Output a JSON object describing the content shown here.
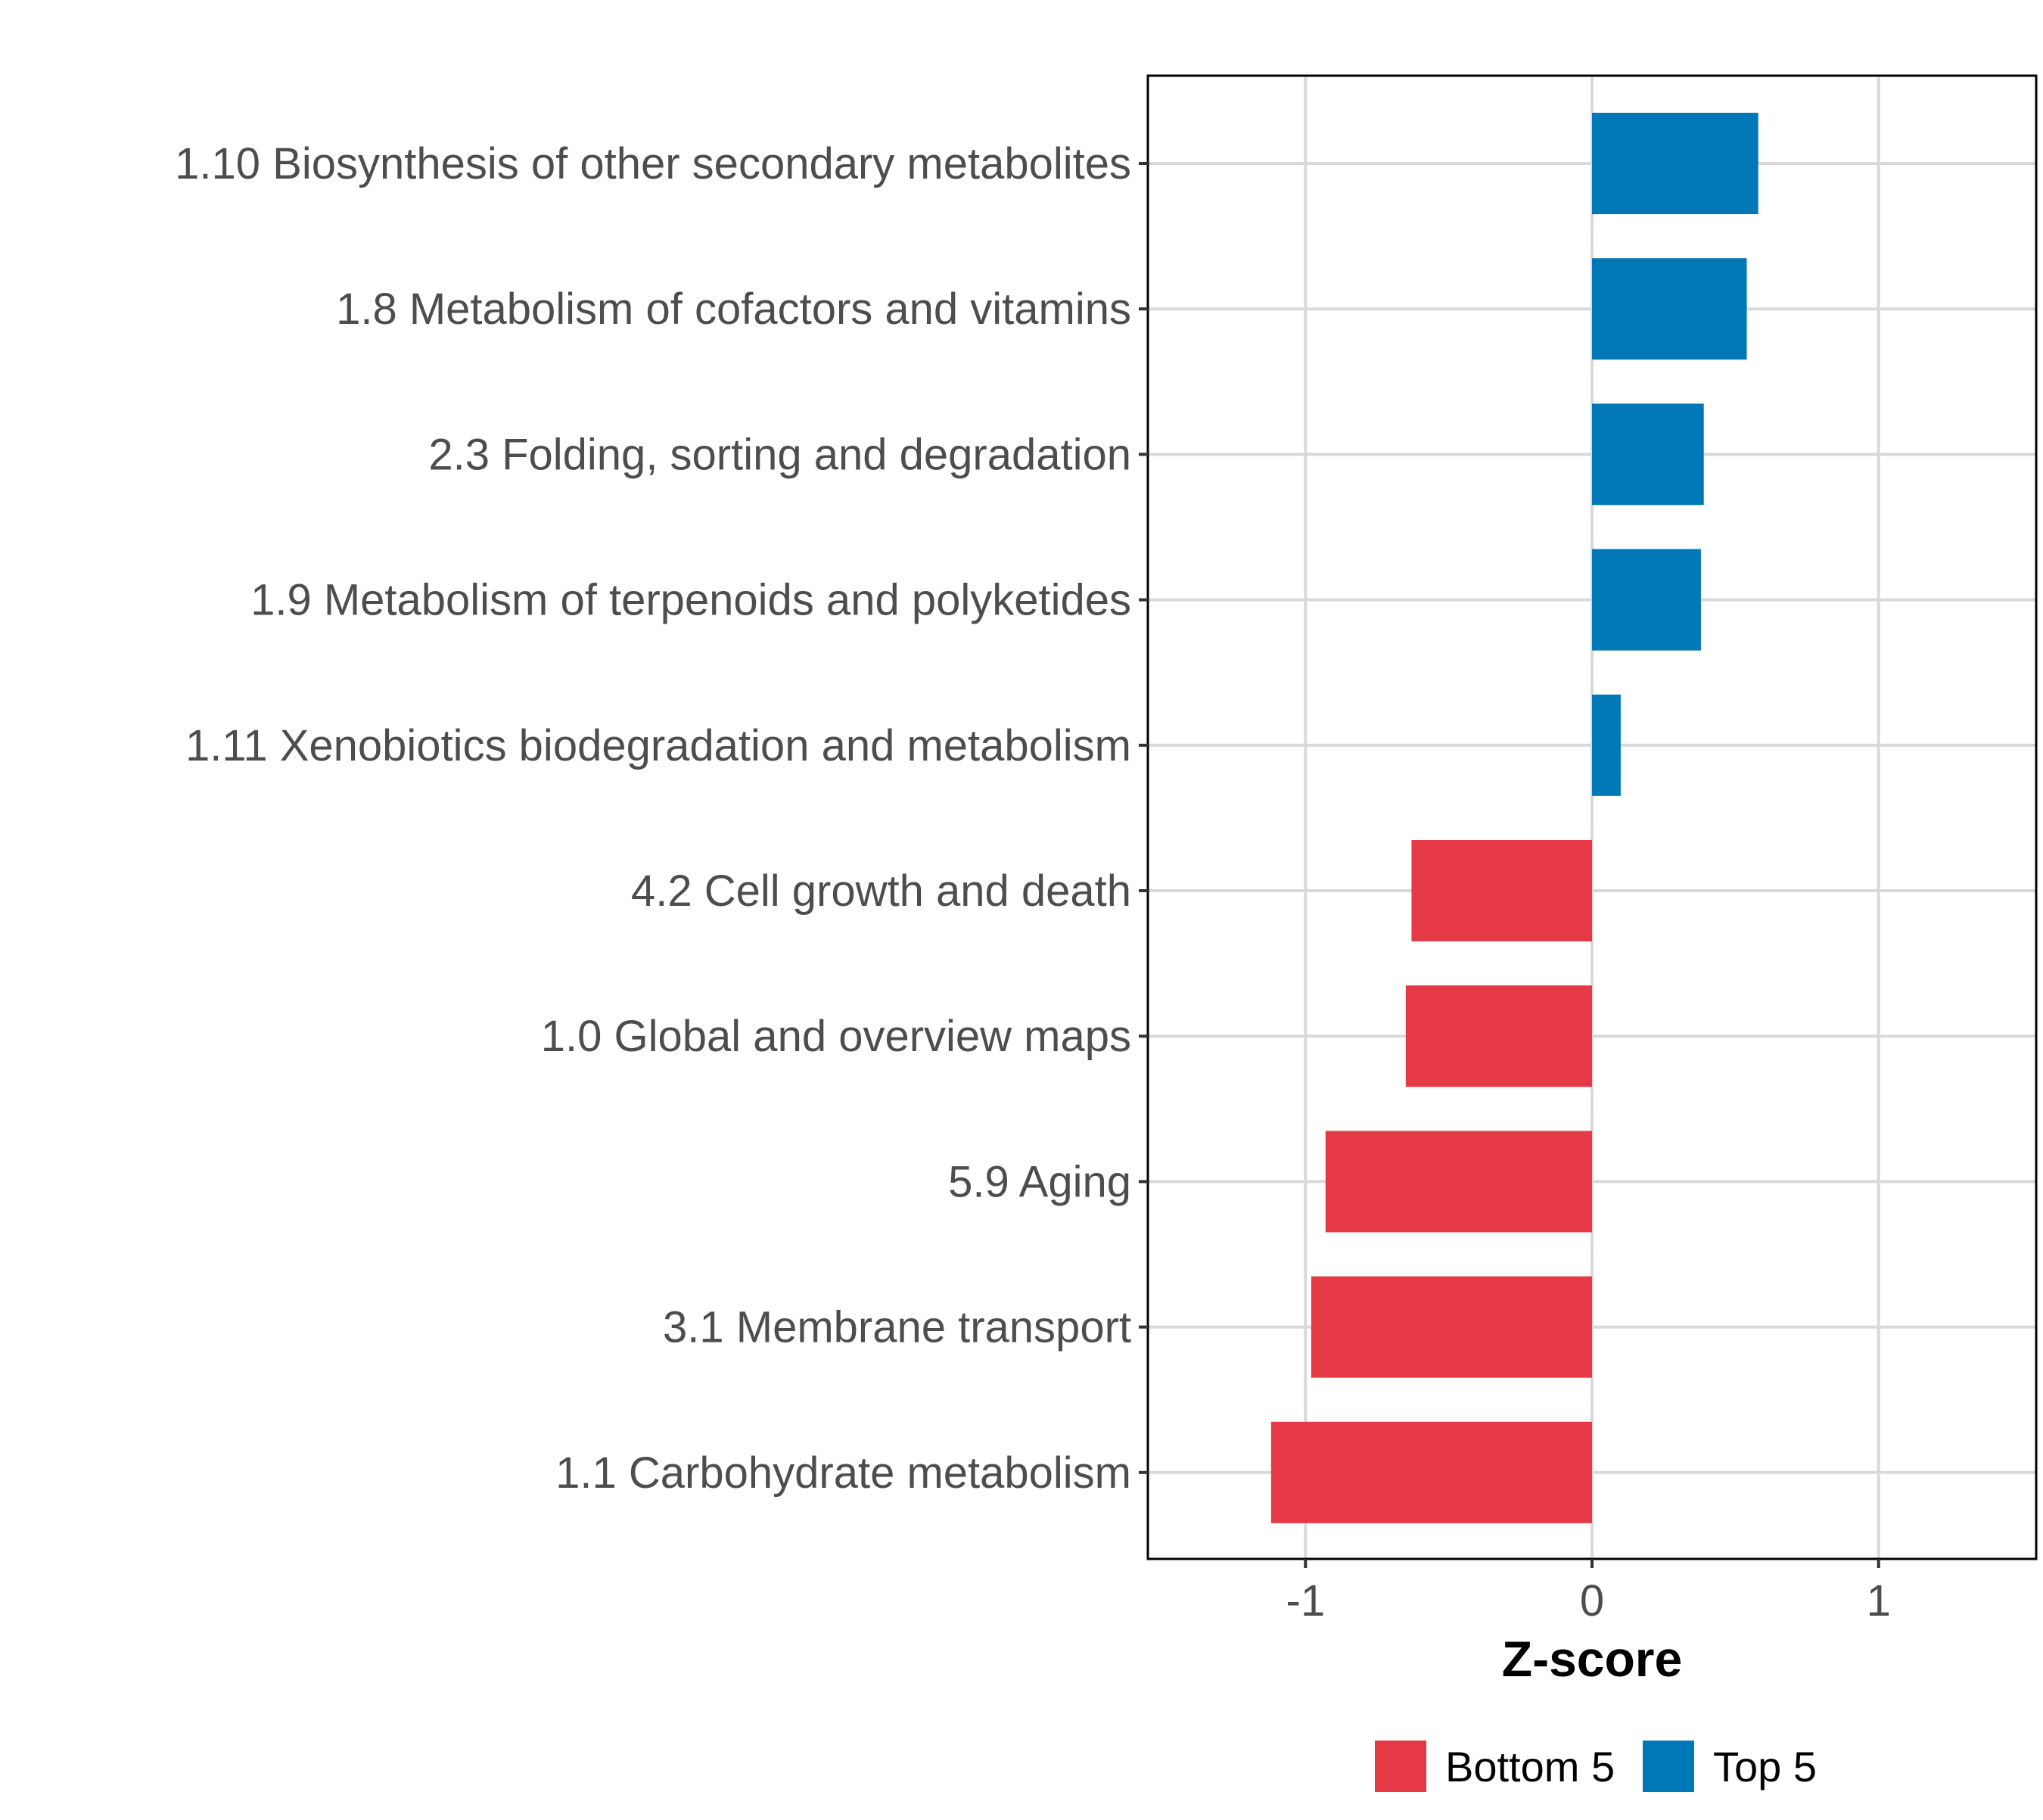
{
  "chart_data": {
    "type": "bar",
    "orientation": "horizontal",
    "title": "",
    "xlabel": "Z-score",
    "ylabel": "",
    "xlim": [
      -1.55,
      1.55
    ],
    "xticks": [
      -1,
      0,
      1
    ],
    "xtick_labels": [
      "-1",
      "0",
      "1"
    ],
    "grid": true,
    "categories": [
      "1.10 Biosynthesis of other secondary metabolites",
      "1.8 Metabolism of cofactors and vitamins",
      "2.3 Folding, sorting and degradation",
      "1.9 Metabolism of terpenoids and polyketides",
      "1.11 Xenobiotics biodegradation and metabolism",
      "4.2 Cell growth and death",
      "1.0 Global and overview maps",
      "5.9 Aging",
      "3.1 Membrane transport",
      "1.1 Carbohydrate metabolism"
    ],
    "values": [
      0.58,
      0.54,
      0.39,
      0.38,
      0.1,
      -0.63,
      -0.65,
      -0.93,
      -0.98,
      -1.12
    ],
    "groups": [
      "Top 5",
      "Top 5",
      "Top 5",
      "Top 5",
      "Top 5",
      "Bottom 5",
      "Bottom 5",
      "Bottom 5",
      "Bottom 5",
      "Bottom 5"
    ],
    "legend": {
      "position": "bottom",
      "entries": [
        {
          "label": "Bottom 5",
          "color": "#E63946"
        },
        {
          "label": "Top 5",
          "color": "#0077B6"
        }
      ]
    },
    "colors": {
      "Bottom 5": "#E63946",
      "Top 5": "#0077B6"
    }
  }
}
